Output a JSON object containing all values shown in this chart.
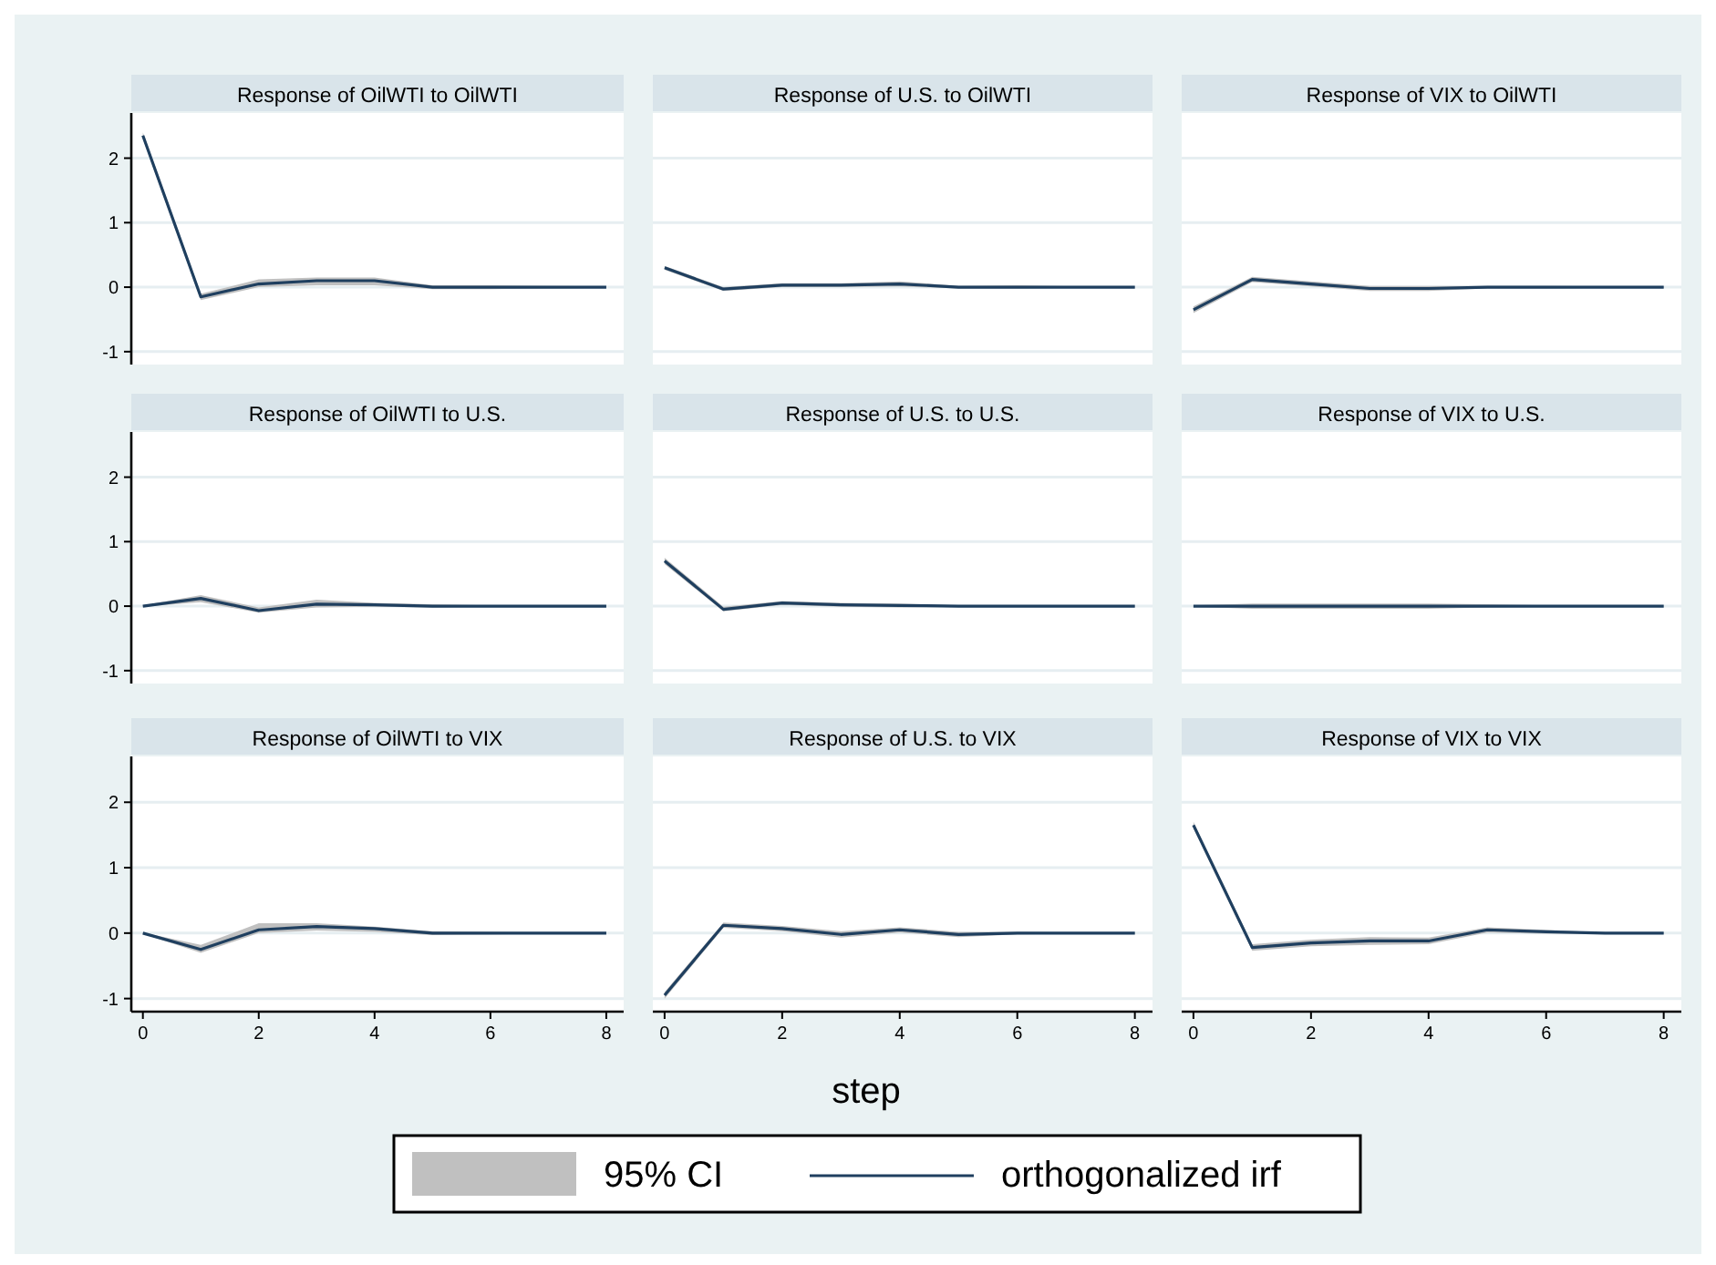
{
  "chart_data": [
    {
      "type": "line",
      "title": "Response of OilWTI to OilWTI",
      "x": [
        0,
        1,
        2,
        3,
        4,
        5,
        6,
        7,
        8
      ],
      "xlim": [
        -0.2,
        8.3
      ],
      "xticks": [
        0,
        2,
        4,
        6,
        8
      ],
      "ylim": [
        -1.2,
        2.7
      ],
      "yticks": [
        -1,
        0,
        1,
        2
      ],
      "grid": "y",
      "tick_labels": "y",
      "series": [
        {
          "color": "#1f3f5f",
          "values": [
            2.35,
            -0.15,
            0.05,
            0.1,
            0.1,
            0,
            0,
            0,
            0
          ],
          "lower": [
            2.3,
            -0.2,
            0,
            0.03,
            0.03,
            -0.03,
            -0.03,
            -0.02,
            -0.01
          ],
          "upper": [
            2.4,
            -0.1,
            0.12,
            0.15,
            0.15,
            0.03,
            0.03,
            0.02,
            0.01
          ]
        }
      ]
    },
    {
      "type": "line",
      "title": "Response of U.S. to OilWTI",
      "x": [
        0,
        1,
        2,
        3,
        4,
        5,
        6,
        7,
        8
      ],
      "xlim": [
        -0.2,
        8.3
      ],
      "xticks": [
        0,
        2,
        4,
        6,
        8
      ],
      "ylim": [
        -1.2,
        2.7
      ],
      "yticks": [
        -1,
        0,
        1,
        2
      ],
      "grid": "y",
      "tick_labels": false,
      "series": [
        {
          "color": "#1f3f5f",
          "values": [
            0.3,
            -0.03,
            0.03,
            0.03,
            0.05,
            0,
            0,
            0,
            0
          ],
          "lower": [
            0.27,
            -0.06,
            0,
            0,
            0.01,
            -0.02,
            -0.02,
            -0.01,
            -0.01
          ],
          "upper": [
            0.33,
            0,
            0.06,
            0.06,
            0.09,
            0.02,
            0.03,
            0.01,
            0.01
          ]
        }
      ]
    },
    {
      "type": "line",
      "title": "Response of VIX to OilWTI",
      "x": [
        0,
        1,
        2,
        3,
        4,
        5,
        6,
        7,
        8
      ],
      "xlim": [
        -0.2,
        8.3
      ],
      "xticks": [
        0,
        2,
        4,
        6,
        8
      ],
      "ylim": [
        -1.2,
        2.7
      ],
      "yticks": [
        -1,
        0,
        1,
        2
      ],
      "grid": "y",
      "tick_labels": false,
      "series": [
        {
          "color": "#1f3f5f",
          "values": [
            -0.35,
            0.12,
            0.05,
            -0.02,
            -0.02,
            0,
            0,
            0,
            0
          ],
          "lower": [
            -0.4,
            0.08,
            0.01,
            -0.06,
            -0.06,
            -0.02,
            -0.02,
            -0.01,
            -0.01
          ],
          "upper": [
            -0.3,
            0.16,
            0.09,
            0.02,
            0.02,
            0.02,
            0.02,
            0.01,
            0.01
          ]
        }
      ]
    },
    {
      "type": "line",
      "title": "Response of OilWTI to U.S.",
      "x": [
        0,
        1,
        2,
        3,
        4,
        5,
        6,
        7,
        8
      ],
      "xlim": [
        -0.2,
        8.3
      ],
      "xticks": [
        0,
        2,
        4,
        6,
        8
      ],
      "ylim": [
        -1.2,
        2.7
      ],
      "yticks": [
        -1,
        0,
        1,
        2
      ],
      "grid": "y",
      "tick_labels": "y",
      "series": [
        {
          "color": "#1f3f5f",
          "values": [
            0,
            0.12,
            -0.07,
            0.03,
            0.02,
            0,
            0,
            0,
            0
          ],
          "lower": [
            -0.01,
            0.06,
            -0.1,
            -0.02,
            -0.01,
            -0.02,
            -0.01,
            -0.01,
            -0.01
          ],
          "upper": [
            0.01,
            0.17,
            -0.02,
            0.1,
            0.05,
            0.03,
            0.01,
            0.01,
            0.01
          ]
        }
      ]
    },
    {
      "type": "line",
      "title": "Response of U.S. to U.S.",
      "x": [
        0,
        1,
        2,
        3,
        4,
        5,
        6,
        7,
        8
      ],
      "xlim": [
        -0.2,
        8.3
      ],
      "xticks": [
        0,
        2,
        4,
        6,
        8
      ],
      "ylim": [
        -1.2,
        2.7
      ],
      "yticks": [
        -1,
        0,
        1,
        2
      ],
      "grid": "y",
      "tick_labels": false,
      "series": [
        {
          "color": "#1f3f5f",
          "values": [
            0.7,
            -0.05,
            0.05,
            0.02,
            0.01,
            0,
            0,
            0,
            0
          ],
          "lower": [
            0.65,
            -0.08,
            0.02,
            -0.01,
            -0.02,
            -0.01,
            -0.01,
            -0.01,
            -0.01
          ],
          "upper": [
            0.75,
            -0.01,
            0.08,
            0.05,
            0.04,
            0.01,
            0.01,
            0.01,
            0.01
          ]
        }
      ]
    },
    {
      "type": "line",
      "title": "Response of VIX to U.S.",
      "x": [
        0,
        1,
        2,
        3,
        4,
        5,
        6,
        7,
        8
      ],
      "xlim": [
        -0.2,
        8.3
      ],
      "xticks": [
        0,
        2,
        4,
        6,
        8
      ],
      "ylim": [
        -1.2,
        2.7
      ],
      "yticks": [
        -1,
        0,
        1,
        2
      ],
      "grid": "y",
      "tick_labels": false,
      "series": [
        {
          "color": "#1f3f5f",
          "values": [
            0,
            0,
            0,
            0,
            0,
            0,
            0,
            0,
            0
          ],
          "lower": [
            -0.01,
            -0.04,
            -0.04,
            -0.04,
            -0.04,
            -0.02,
            -0.01,
            -0.01,
            -0.01
          ],
          "upper": [
            0.01,
            0.04,
            0.04,
            0.04,
            0.04,
            0.03,
            0.01,
            0.01,
            0.01
          ]
        }
      ]
    },
    {
      "type": "line",
      "title": "Response of OilWTI to VIX",
      "x": [
        0,
        1,
        2,
        3,
        4,
        5,
        6,
        7,
        8
      ],
      "xlim": [
        -0.2,
        8.3
      ],
      "xticks": [
        0,
        2,
        4,
        6,
        8
      ],
      "ylim": [
        -1.2,
        2.7
      ],
      "yticks": [
        -1,
        0,
        1,
        2
      ],
      "grid": "y",
      "series": [
        {
          "color": "#1f3f5f",
          "values": [
            0,
            -0.25,
            0.05,
            0.1,
            0.07,
            0,
            0,
            0,
            0
          ],
          "lower": [
            -0.01,
            -0.3,
            0,
            0.04,
            0.02,
            -0.03,
            -0.02,
            -0.01,
            -0.01
          ],
          "upper": [
            0.01,
            -0.18,
            0.15,
            0.15,
            0.1,
            0.03,
            0.02,
            0.01,
            0.01
          ]
        }
      ]
    },
    {
      "type": "line",
      "title": "Response of U.S. to VIX",
      "xlabel": "step",
      "legend": "bottom",
      "annotations": [
        "95% CI"
      ],
      "x": [
        0,
        1,
        2,
        3,
        4,
        5,
        6,
        7,
        8
      ],
      "xlim": [
        -0.2,
        8.3
      ],
      "xticks": [
        0,
        2,
        4,
        6,
        8
      ],
      "ylim": [
        -1.2,
        2.7
      ],
      "yticks": [
        -1,
        0,
        1,
        2
      ],
      "grid": "y",
      "tick_labels": "x",
      "series": [
        {
          "name": "orthogonalized irf",
          "color": "#1f3f5f",
          "values": [
            -0.95,
            0.12,
            0.07,
            -0.02,
            0.05,
            -0.02,
            0,
            0,
            0
          ],
          "lower": [
            -1,
            0.08,
            0.03,
            -0.07,
            0.01,
            -0.06,
            -0.02,
            -0.01,
            -0.01
          ],
          "upper": [
            -0.9,
            0.16,
            0.11,
            0.03,
            0.09,
            0.02,
            0.02,
            0.01,
            0.01
          ]
        }
      ]
    },
    {
      "type": "line",
      "title": "Response of VIX to VIX",
      "x": [
        0,
        1,
        2,
        3,
        4,
        5,
        6,
        7,
        8
      ],
      "xlim": [
        -0.2,
        8.3
      ],
      "xticks": [
        0,
        2,
        4,
        6,
        8
      ],
      "ylim": [
        -1.2,
        2.7
      ],
      "yticks": [
        -1,
        0,
        1,
        2
      ],
      "grid": "y",
      "tick_labels": "x",
      "series": [
        {
          "color": "#1f3f5f",
          "values": [
            1.65,
            -0.22,
            -0.15,
            -0.12,
            -0.12,
            0.05,
            0.02,
            0,
            0
          ],
          "lower": [
            1.6,
            -0.27,
            -0.2,
            -0.18,
            -0.17,
            0.01,
            -0.01,
            -0.01,
            -0.01
          ],
          "upper": [
            1.7,
            -0.17,
            -0.1,
            -0.06,
            -0.07,
            0.09,
            0.05,
            0.01,
            0.01
          ]
        }
      ]
    }
  ]
}
